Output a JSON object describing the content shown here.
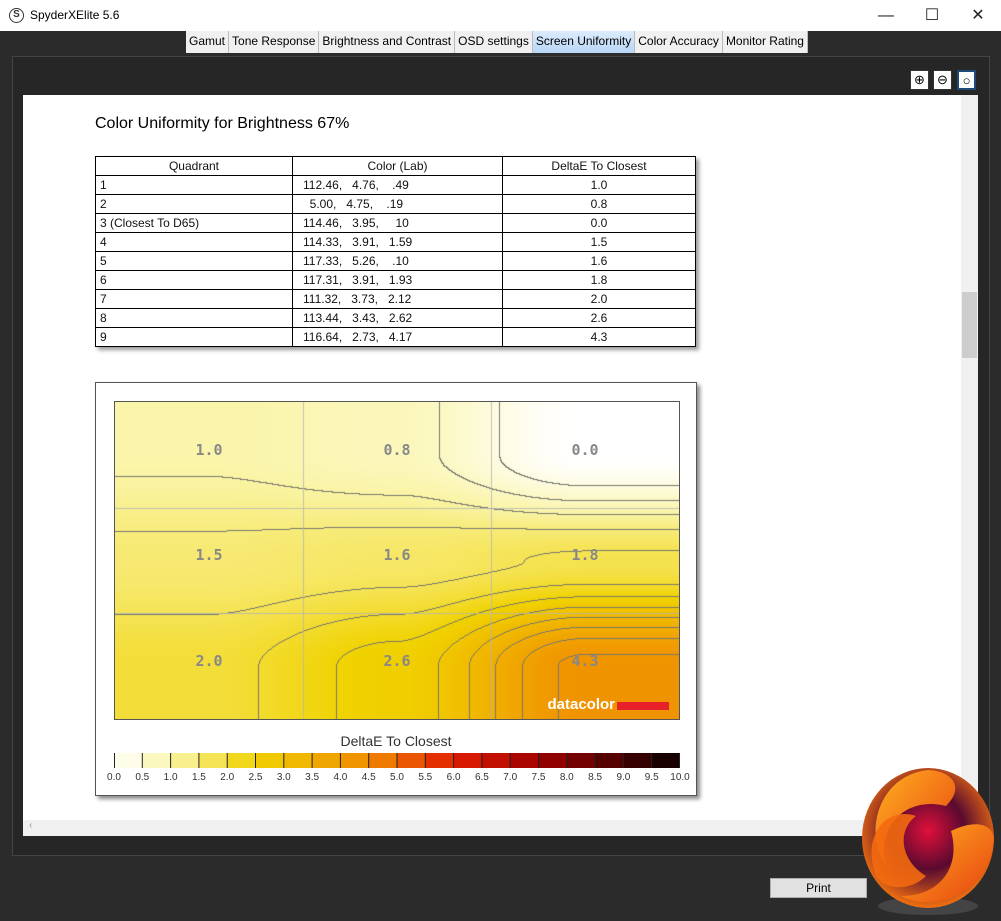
{
  "window": {
    "title": "SpyderXElite 5.6",
    "minimize": "—",
    "maximize": "☐",
    "close": "✕"
  },
  "tabs": [
    {
      "label": "Gamut"
    },
    {
      "label": "Tone Response"
    },
    {
      "label": "Brightness and Contrast"
    },
    {
      "label": "OSD settings"
    },
    {
      "label": "Screen Uniformity",
      "active": true
    },
    {
      "label": "Color Accuracy"
    },
    {
      "label": "Monitor Rating"
    }
  ],
  "zoom_icons": [
    "zoom-in-icon",
    "zoom-out-icon",
    "zoom-fit-icon"
  ],
  "section_title": "Color Uniformity for Brightness 67%",
  "table": {
    "headers": [
      "Quadrant",
      "Color (Lab)",
      "DeltaE To Closest"
    ],
    "rows": [
      [
        "1",
        "112.46,   4.76,    .49",
        "1.0"
      ],
      [
        "2",
        "  5.00,   4.75,    .19",
        "0.8"
      ],
      [
        "3 (Closest To D65)",
        "114.46,   3.95,     10",
        "0.0"
      ],
      [
        "4",
        "114.33,   3.91,   1.59",
        "1.5"
      ],
      [
        "5",
        "117.33,   5.26,    .10",
        "1.6"
      ],
      [
        "6",
        "117.31,   3.91,   1.93",
        "1.8"
      ],
      [
        "7",
        "111.32,   3.73,   2.12",
        "2.0"
      ],
      [
        "8",
        "113.44,   3.43,   2.62",
        "2.6"
      ],
      [
        "9",
        "116.64,   2.73,   4.17",
        "4.3"
      ]
    ]
  },
  "chart_data": {
    "type": "heatmap",
    "grid": [
      [
        1.0,
        0.8,
        0.0
      ],
      [
        1.5,
        1.6,
        1.8
      ],
      [
        2.0,
        2.6,
        4.3
      ]
    ],
    "labels": [
      "1.0",
      "0.8",
      "0.0",
      "1.5",
      "1.6",
      "1.8",
      "2.0",
      "2.6",
      "4.3"
    ],
    "colorbar_title": "DeltaE To Closest",
    "colorbar_range": [
      0,
      10
    ],
    "colorbar_ticks": [
      "0.0",
      "0.5",
      "1.0",
      "1.5",
      "2.0",
      "2.5",
      "3.0",
      "3.5",
      "4.0",
      "4.5",
      "5.0",
      "5.5",
      "6.0",
      "6.5",
      "7.0",
      "7.5",
      "8.0",
      "8.5",
      "9.0",
      "9.5",
      "10.0"
    ],
    "contours": true
  },
  "watermark": "datacolor",
  "buttons": {
    "print": "Print"
  },
  "scroll_arrow": "‹"
}
